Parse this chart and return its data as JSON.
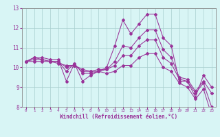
{
  "xlabel": "Windchill (Refroidissement éolien,°C)",
  "x": [
    0,
    1,
    2,
    3,
    4,
    5,
    6,
    7,
    8,
    9,
    10,
    11,
    12,
    13,
    14,
    15,
    16,
    17,
    18,
    19,
    20,
    21,
    22,
    23
  ],
  "line1": [
    10.3,
    10.5,
    10.5,
    10.4,
    10.4,
    9.3,
    10.2,
    9.3,
    9.6,
    9.8,
    10.0,
    11.1,
    12.4,
    11.7,
    12.2,
    12.7,
    12.7,
    11.5,
    11.1,
    9.3,
    9.3,
    8.5,
    9.6,
    9.0
  ],
  "line2": [
    10.3,
    10.5,
    10.4,
    10.3,
    10.3,
    9.8,
    10.2,
    9.7,
    9.7,
    9.8,
    9.9,
    10.3,
    11.1,
    11.0,
    11.5,
    11.9,
    11.9,
    10.9,
    10.5,
    9.5,
    9.4,
    8.8,
    9.3,
    8.7
  ],
  "line3": [
    10.3,
    10.4,
    10.4,
    10.3,
    10.3,
    10.0,
    10.1,
    9.8,
    9.8,
    9.9,
    9.9,
    10.1,
    10.6,
    10.6,
    11.1,
    11.4,
    11.4,
    10.5,
    10.2,
    9.4,
    9.3,
    8.7,
    9.2,
    8.0
  ],
  "line4": [
    10.3,
    10.3,
    10.3,
    10.3,
    10.2,
    10.1,
    10.1,
    9.9,
    9.8,
    9.8,
    9.7,
    9.8,
    10.1,
    10.1,
    10.5,
    10.7,
    10.7,
    10.0,
    9.8,
    9.2,
    9.0,
    8.4,
    8.9,
    7.6
  ],
  "color": "#993399",
  "bg_color": "#d8f5f5",
  "grid_color": "#aacfcf",
  "ylim": [
    8,
    13
  ],
  "xlim": [
    -0.5,
    23.5
  ],
  "yticks": [
    8,
    9,
    10,
    11,
    12,
    13
  ],
  "xticks": [
    0,
    1,
    2,
    3,
    4,
    5,
    6,
    7,
    8,
    9,
    10,
    11,
    12,
    13,
    14,
    15,
    16,
    17,
    18,
    19,
    20,
    21,
    22,
    23
  ],
  "marker": "D",
  "markersize": 2.0,
  "linewidth": 0.75
}
